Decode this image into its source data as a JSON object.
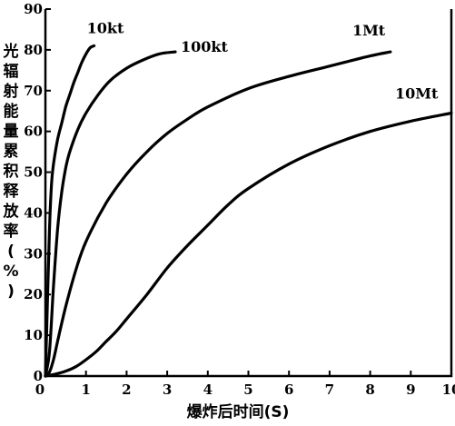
{
  "chart_data": {
    "type": "line",
    "xlabel": "爆炸后时间(S)",
    "ylabel": "光辐射能量累积释放率(%)",
    "xlim": [
      0,
      10
    ],
    "ylim": [
      0,
      90
    ],
    "xticks": [
      "0",
      "1",
      "2",
      "3",
      "4",
      "5",
      "6",
      "7",
      "8",
      "9",
      "10"
    ],
    "yticks": [
      "0",
      "10",
      "20",
      "30",
      "40",
      "50",
      "60",
      "70",
      "80",
      "90"
    ],
    "grid": false,
    "series": [
      {
        "name": "10kt",
        "x": [
          0,
          0.05,
          0.1,
          0.15,
          0.2,
          0.3,
          0.4,
          0.5,
          0.6,
          0.7,
          0.8,
          0.9,
          1.0,
          1.1,
          1.2
        ],
        "y": [
          0,
          18,
          36,
          47,
          52,
          58,
          62,
          66,
          69,
          72,
          74.5,
          77,
          79,
          80.5,
          81
        ]
      },
      {
        "name": "100kt",
        "x": [
          0,
          0.1,
          0.2,
          0.3,
          0.4,
          0.5,
          0.6,
          0.8,
          1.0,
          1.3,
          1.6,
          2.0,
          2.4,
          2.8,
          3.2
        ],
        "y": [
          0,
          6,
          22,
          36,
          45,
          51,
          55,
          60.5,
          64.5,
          69,
          72.5,
          75.5,
          77.5,
          79,
          79.5
        ]
      },
      {
        "name": "1Mt",
        "x": [
          0,
          0.1,
          0.2,
          0.3,
          0.5,
          0.75,
          1.0,
          1.5,
          2.0,
          2.5,
          3.0,
          3.5,
          4.0,
          5.0,
          6.0,
          7.0,
          8.0,
          8.5
        ],
        "y": [
          0,
          1,
          4,
          8.5,
          17,
          26,
          33,
          42.5,
          49.5,
          55,
          59.5,
          63,
          66,
          70.5,
          73.5,
          76,
          78.5,
          79.5
        ]
      },
      {
        "name": "10Mt",
        "x": [
          0,
          0.25,
          0.5,
          0.75,
          1.0,
          1.25,
          1.5,
          1.75,
          2.0,
          2.5,
          3.0,
          3.5,
          4.0,
          4.5,
          5.0,
          6.0,
          7.0,
          8.0,
          9.0,
          10.0
        ],
        "y": [
          0,
          0.5,
          1.2,
          2.3,
          4,
          6,
          8.5,
          11,
          14,
          20,
          26.5,
          32,
          37,
          42,
          46,
          52,
          56.5,
          60,
          62.5,
          64.5
        ]
      }
    ]
  }
}
